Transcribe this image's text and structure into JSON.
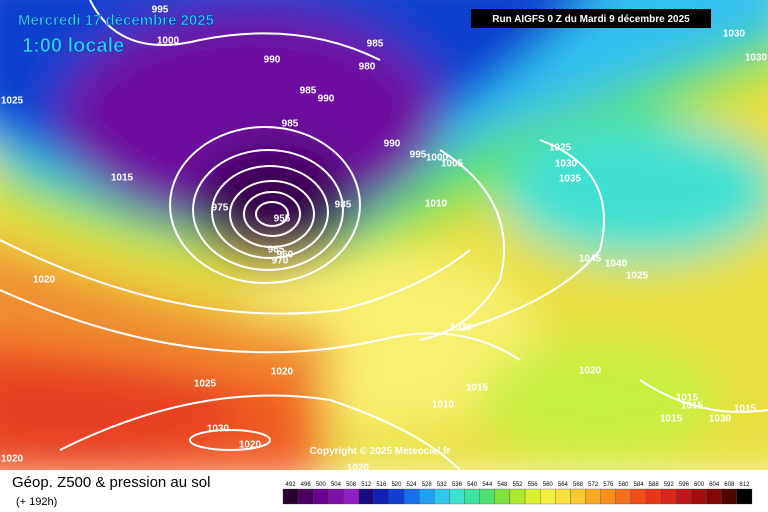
{
  "header": {
    "date": "Mercredi 17 décembre 2025",
    "time": "1:00 locale",
    "run": "Run AIGFS 0 Z du Mardi 9 décembre 2025"
  },
  "copyright": "Copyright © 2025 Meteociel.fr",
  "legend": {
    "title": "Géop. Z500 & pression au sol",
    "lead": "(+ 192h)",
    "scale": [
      492,
      496,
      500,
      504,
      508,
      512,
      516,
      520,
      524,
      528,
      532,
      536,
      540,
      544,
      548,
      552,
      556,
      560,
      564,
      568,
      572,
      576,
      580,
      584,
      588,
      592,
      596,
      600,
      604,
      608,
      612
    ],
    "colors": [
      "#2a0030",
      "#4a0060",
      "#6a0090",
      "#8010a8",
      "#9020c0",
      "#1a0a80",
      "#1020b0",
      "#1040d0",
      "#1870e8",
      "#20a0f0",
      "#30c8f0",
      "#40e0d0",
      "#40e0a0",
      "#50e070",
      "#80e040",
      "#b0e830",
      "#d8f030",
      "#f0f040",
      "#f8e040",
      "#f8c830",
      "#f8a828",
      "#f89020",
      "#f07020",
      "#f05018",
      "#e83818",
      "#d82818",
      "#c01818",
      "#a01010",
      "#800808",
      "#500404",
      "#000000"
    ]
  },
  "isobars": [
    995,
    1000,
    990,
    985,
    980,
    985,
    990,
    985,
    990,
    995,
    1000,
    1005,
    1025,
    1015,
    975,
    955,
    985,
    965,
    960,
    970,
    1010,
    1025,
    1030,
    1035,
    1045,
    1040,
    1025,
    1030,
    1030,
    1020,
    1030,
    1020,
    1025,
    1020,
    1015,
    1010,
    1015,
    1015,
    1015,
    1015,
    1030,
    1030,
    1020,
    1020,
    1020
  ]
}
